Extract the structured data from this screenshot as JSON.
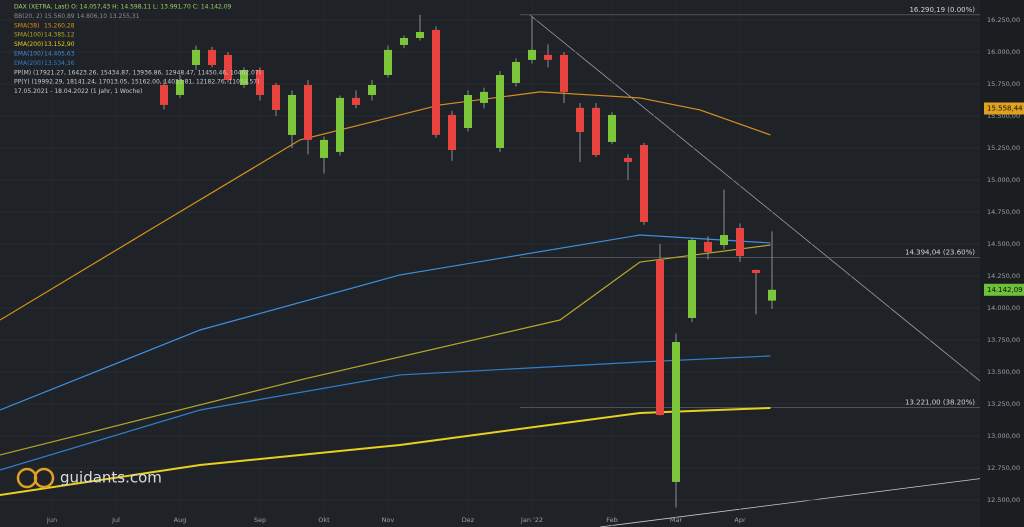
{
  "chart_data": {
    "type": "candlestick",
    "header": [
      {
        "text": "DAX (XETRA, Last)  O: 14.057,43  H: 14.598,11  L: 13.991,70  C: 14.142,09",
        "color": "#9cd36a"
      },
      {
        "text": "BB(20, 2)  15.560,89  14.806,10  13.255,31",
        "color": "#8a8f96"
      },
      {
        "text": "PP(M)  (17921.27, 16423.26, 15434.87, 13936.86, 12948.47, 11450.46, 10462.07)",
        "color": "#c8ccd2"
      },
      {
        "text": "PP(Y)  (19992.29, 18141.24, 17013.05, 15162.00, 14033.81, 12182.76, 11054.57)",
        "color": "#c8ccd2"
      },
      {
        "text": "17.05.2021 - 18.04.2022  (1 Jahr, 1 Woche)",
        "color": "#c8ccd2"
      }
    ],
    "logo": "guidants.com",
    "up_color": "#7cc63a",
    "down_color": "#e8433f",
    "candles": {
      "x": [
        10,
        11,
        12,
        13,
        14,
        15,
        16,
        17,
        18,
        19,
        20,
        21,
        22,
        23,
        24,
        25,
        26,
        27,
        28,
        29,
        30,
        31,
        32,
        33,
        34,
        35,
        36,
        37,
        38,
        39,
        40,
        41,
        42,
        43,
        44,
        45,
        46,
        47,
        48
      ],
      "open": [
        15742,
        15664,
        15898,
        16016,
        15977,
        15742,
        15859,
        15742,
        15352,
        15742,
        15172,
        15219,
        15641,
        15664,
        15820,
        16055,
        16109,
        16172,
        15508,
        15406,
        15602,
        15250,
        15758,
        15938,
        15977,
        15977,
        15563,
        15563,
        15297,
        15172,
        15273,
        14375,
        12641,
        13922,
        14516,
        14492,
        14625,
        14297,
        14057.43
      ],
      "high": [
        15780,
        15820,
        16050,
        16040,
        16000,
        15880,
        15880,
        15760,
        15700,
        15780,
        15340,
        15660,
        15700,
        15780,
        16050,
        16130,
        16290,
        16200,
        15540,
        15700,
        15720,
        15850,
        15950,
        16280,
        16060,
        16000,
        15600,
        15600,
        15530,
        15200,
        15290,
        14500,
        13800,
        14550,
        14560,
        14925,
        14660,
        14300,
        14598.11
      ],
      "low": [
        15550,
        15640,
        15860,
        15880,
        15760,
        15720,
        15620,
        15500,
        15250,
        15200,
        15050,
        15190,
        15560,
        15620,
        15800,
        16030,
        16090,
        15330,
        15150,
        15380,
        15560,
        15220,
        15730,
        15910,
        15880,
        15600,
        15140,
        15180,
        15280,
        15000,
        14650,
        13160,
        12440,
        13890,
        14380,
        14460,
        14360,
        13950,
        13991.7
      ],
      "close": [
        15586,
        15781,
        16016,
        15898,
        15781,
        15859,
        15664,
        15547,
        15664,
        15313,
        15313,
        15641,
        15586,
        15742,
        16016,
        16109,
        16156,
        15352,
        15234,
        15664,
        15688,
        15820,
        15922,
        16016,
        15938,
        15688,
        15375,
        15195,
        15508,
        15141,
        14672,
        13164,
        13734,
        14531,
        14438,
        14570,
        14406,
        14273,
        14142.09
      ]
    },
    "indicators": [
      {
        "name": "EMA(200)",
        "value_text": "13.534,36",
        "color": "#2f7fd0",
        "x": [
          -0.25,
          12.25,
          24.75,
          39.75,
          47.9
        ],
        "values": [
          12734,
          13203,
          13477,
          13578,
          13625
        ]
      },
      {
        "name": "EMA(100)",
        "value_text": "14.405,63",
        "color": "#3f8fe0",
        "x": [
          -0.25,
          12.25,
          24.75,
          39.75,
          47.9
        ],
        "values": [
          13203,
          13828,
          14258,
          14570,
          14508
        ]
      },
      {
        "name": "SMA(200)",
        "value_text": "13.152,90",
        "color": "#e8d020",
        "x": [
          -0.25,
          12.25,
          24.75,
          39.75,
          47.9
        ],
        "values": [
          12539,
          12773,
          12930,
          13180,
          13219
        ]
      },
      {
        "name": "SMA(100)",
        "value_text": "14.385,12",
        "color": "#b8a628",
        "x": [
          -0.25,
          18.5,
          34.75,
          39.75,
          47.9
        ],
        "values": [
          12852,
          13438,
          13906,
          14359,
          14492
        ]
      },
      {
        "name": "SMA(38)",
        "value_text": "15.260,28",
        "color": "#d89020",
        "x": [
          -0.25,
          9.1,
          18.5,
          27.25,
          33.5,
          39.75,
          43.5,
          47.9
        ],
        "values": [
          13906,
          14609,
          15313,
          15586,
          15688,
          15641,
          15547,
          15352
        ]
      }
    ],
    "levels": [
      {
        "value": 16290.19,
        "label": "16.290,19 (0.00%)"
      },
      {
        "value": 14394.04,
        "label": "14.394,04 (23.60%)"
      },
      {
        "value": 13221.0,
        "label": "13.221,00 (38.20%)"
      }
    ],
    "price_tags": [
      {
        "value": 15558.44,
        "label": "15.558,44",
        "color": "#e0a020"
      },
      {
        "value": 14142.09,
        "label": "14.142,09",
        "color": "#6cc03a"
      }
    ],
    "xlim": [
      -0.25,
      61
    ],
    "xticks": [
      {
        "value": 3,
        "label": "Jun"
      },
      {
        "value": 7,
        "label": "Jul"
      },
      {
        "value": 11,
        "label": "Aug"
      },
      {
        "value": 16,
        "label": "Sep"
      },
      {
        "value": 20,
        "label": "Okt"
      },
      {
        "value": 24,
        "label": "Nov"
      },
      {
        "value": 29,
        "label": "Dez"
      },
      {
        "value": 33,
        "label": "Jan '22"
      },
      {
        "value": 38,
        "label": "Feb"
      },
      {
        "value": 42,
        "label": "Mär"
      },
      {
        "value": 46,
        "label": "Apr"
      }
    ],
    "ylim": [
      12289,
      16406
    ],
    "yticks": [
      {
        "value": 12500,
        "label": "12.500,00"
      },
      {
        "value": 12750,
        "label": "12.750,00"
      },
      {
        "value": 13000,
        "label": "13.000,00"
      },
      {
        "value": 13250,
        "label": "13.250,00"
      },
      {
        "value": 13500,
        "label": "13.500,00"
      },
      {
        "value": 13750,
        "label": "13.750,00"
      },
      {
        "value": 14000,
        "label": "14.000,00"
      },
      {
        "value": 14250,
        "label": "14.250,00"
      },
      {
        "value": 14500,
        "label": "14.500,00"
      },
      {
        "value": 14750,
        "label": "14.750,00"
      },
      {
        "value": 15000,
        "label": "15.000,00"
      },
      {
        "value": 15250,
        "label": "15.250,00"
      },
      {
        "value": 15500,
        "label": "15.500,00"
      },
      {
        "value": 15750,
        "label": "15.750,00"
      },
      {
        "value": 16000,
        "label": "16.000,00"
      },
      {
        "value": 16250,
        "label": "16.250,00"
      }
    ],
    "grid": true
  }
}
